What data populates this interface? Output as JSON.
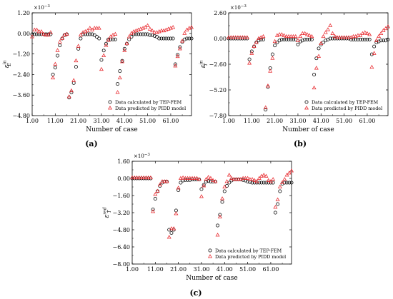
{
  "figure": {
    "captions": [
      "(a)",
      "(b)",
      "(c)"
    ]
  },
  "chart_data": [
    {
      "id": "a",
      "type": "scatter",
      "ylabel": {
        "sym": "ε",
        "sup": "in",
        "sub": "E"
      },
      "xlabel": "Number of case",
      "exponent": "×10",
      "exponent_power": "−3",
      "xlim": [
        1,
        70
      ],
      "ylim": [
        -4.8,
        1.2
      ],
      "xticks": [
        1,
        11,
        21,
        31,
        41,
        51,
        61
      ],
      "xticklabels": [
        "1.00",
        "11.00",
        "21.00",
        "31.00",
        "41.00",
        "51.00",
        "61.00"
      ],
      "yticks": [
        1.2,
        0,
        -1.2,
        -2.4,
        -3.6,
        -4.8
      ],
      "yticklabels": [
        "1.20",
        "0.00",
        "−1.20",
        "−2.40",
        "−3.60",
        "−4.80"
      ],
      "legend": {
        "placement": "bottom-right"
      },
      "series": [
        {
          "name": "Data calculated by TEP-FEM",
          "marker": "circle",
          "color": "#000000",
          "y": [
            -0.05,
            -0.05,
            -0.05,
            -0.05,
            -0.05,
            -0.05,
            -0.05,
            -0.05,
            -0.05,
            -2.4,
            -2.0,
            -1.3,
            -0.7,
            -0.3,
            -0.1,
            -0.05,
            -3.75,
            -3.45,
            -2.9,
            -1.95,
            -0.9,
            -0.3,
            -0.05,
            -0.05,
            -0.05,
            -0.05,
            -0.05,
            -0.1,
            -0.2,
            -0.3,
            -1.55,
            -1.0,
            -0.6,
            -0.35,
            -0.35,
            -0.35,
            -0.35,
            -2.95,
            -2.2,
            -1.6,
            -0.9,
            -0.6,
            -0.35,
            -0.2,
            -0.05,
            -0.05,
            -0.05,
            -0.05,
            -0.05,
            -0.05,
            -0.05,
            -0.1,
            -0.1,
            -0.15,
            -0.2,
            -0.3,
            -0.3,
            -0.3,
            -0.3,
            -0.3,
            -0.3,
            -0.3,
            -1.8,
            -1.25,
            -0.8,
            -0.5,
            -0.35,
            -0.3,
            -0.3,
            -0.3
          ]
        },
        {
          "name": "Data predicted by PIDD model",
          "marker": "triangle",
          "color": "#e8262b",
          "y": [
            -0.2,
            0.2,
            0.2,
            0.1,
            0.1,
            -0.05,
            -0.1,
            -0.1,
            0.05,
            -2.6,
            -1.8,
            -1.0,
            -0.5,
            -0.3,
            -0.1,
            -0.05,
            -3.7,
            -3.35,
            -2.75,
            -1.6,
            -0.75,
            -0.1,
            0.05,
            0.1,
            0.15,
            0.3,
            0.2,
            0.3,
            0.3,
            0.3,
            -2.1,
            -1.3,
            -0.7,
            -0.4,
            -0.2,
            -0.1,
            -0.05,
            -3.45,
            -2.6,
            -1.65,
            -1.0,
            -0.6,
            -0.2,
            0.0,
            0.1,
            0.15,
            0.2,
            0.25,
            0.3,
            0.35,
            0.45,
            0.25,
            0.15,
            0.05,
            0.05,
            0.1,
            0.15,
            0.15,
            0.2,
            0.25,
            0.3,
            0.35,
            -1.9,
            -1.35,
            -0.9,
            -0.45,
            0.0,
            0.2,
            0.3,
            0.35
          ]
        }
      ]
    },
    {
      "id": "b",
      "type": "scatter",
      "ylabel": {
        "sym": "ε",
        "sup": "in",
        "sub": "T"
      },
      "xlabel": "Number of case",
      "exponent": "×10",
      "exponent_power": "−3",
      "xlim": [
        1,
        70
      ],
      "ylim": [
        -7.8,
        2.6
      ],
      "xticks": [
        1,
        11,
        21,
        31,
        41,
        51,
        61
      ],
      "xticklabels": [
        "1.00",
        "11.00",
        "21.00",
        "31.00",
        "41.00",
        "51.00",
        "61.00"
      ],
      "yticks": [
        2.6,
        0,
        -2.6,
        -5.2,
        -7.8
      ],
      "yticklabels": [
        "2.60",
        "0.00",
        "−2.60",
        "−5.20",
        "−7.80"
      ],
      "legend": {
        "placement": "bottom-right"
      },
      "series": [
        {
          "name": "Data calculated by TEP-FEM",
          "marker": "circle",
          "color": "#000000",
          "y": [
            0.0,
            0.0,
            0.0,
            0.0,
            0.0,
            0.0,
            0.0,
            0.0,
            0.0,
            -2.1,
            -1.3,
            -0.8,
            -0.4,
            -0.2,
            -0.1,
            -0.1,
            -7.2,
            -4.9,
            -3.0,
            -1.6,
            -0.7,
            -0.4,
            -0.2,
            -0.1,
            -0.1,
            -0.1,
            -0.1,
            -0.1,
            -0.1,
            -0.1,
            -0.6,
            -0.3,
            -0.2,
            -0.1,
            -0.1,
            -0.1,
            -0.1,
            -3.65,
            -2.0,
            -1.0,
            -0.6,
            -0.4,
            -0.2,
            -0.1,
            0.0,
            0.0,
            0.0,
            0.0,
            0.0,
            0.0,
            0.0,
            0.0,
            0.0,
            -0.1,
            -0.1,
            -0.1,
            -0.1,
            -0.1,
            -0.1,
            -0.1,
            -0.1,
            -0.1,
            -1.6,
            -0.8,
            -0.4,
            -0.3,
            -0.2,
            -0.2,
            -0.2,
            -0.1
          ]
        },
        {
          "name": "Data predicted by PIDD model",
          "marker": "triangle",
          "color": "#e8262b",
          "y": [
            0.1,
            0.1,
            0.1,
            0.1,
            0.1,
            0.1,
            0.1,
            0.1,
            0.1,
            -2.5,
            -1.5,
            -0.8,
            -0.4,
            0.0,
            0.1,
            0.2,
            -7.0,
            -4.8,
            -3.3,
            -2.0,
            -0.3,
            0.3,
            0.4,
            0.4,
            0.3,
            0.2,
            0.2,
            0.2,
            0.2,
            0.2,
            -0.2,
            0.2,
            0.5,
            0.5,
            0.4,
            0.3,
            0.2,
            -5.0,
            -3.0,
            -1.8,
            -0.5,
            0.2,
            0.6,
            0.9,
            1.3,
            0.5,
            0.2,
            0.1,
            0.1,
            0.1,
            0.1,
            0.1,
            0.1,
            0.1,
            0.2,
            0.2,
            0.3,
            0.3,
            0.5,
            0.6,
            0.5,
            0.4,
            -2.9,
            -1.5,
            -0.2,
            0.2,
            0.5,
            0.8,
            1.0,
            1.2
          ]
        }
      ]
    },
    {
      "id": "c",
      "type": "scatter",
      "ylabel": {
        "sym": "ε",
        "sup": "red",
        "sub": "T"
      },
      "xlabel": "Number of case",
      "exponent": "×10",
      "exponent_power": "−3",
      "xlim": [
        1,
        70
      ],
      "ylim": [
        -8.0,
        1.6
      ],
      "xticks": [
        1,
        11,
        21,
        31,
        41,
        51,
        61
      ],
      "xticklabels": [
        "1.00",
        "11.00",
        "21.00",
        "31.00",
        "41.00",
        "51.00",
        "61.00"
      ],
      "yticks": [
        1.6,
        0,
        -1.6,
        -3.2,
        -4.8,
        -6.4,
        -8.0
      ],
      "yticklabels": [
        "1.60",
        "0.00",
        "−1.60",
        "−3.20",
        "−4.80",
        "−6.40",
        "−8.00"
      ],
      "legend": {
        "placement": "bottom-right"
      },
      "series": [
        {
          "name": "Data calculated by TEP-FEM",
          "marker": "circle",
          "color": "#000000",
          "y": [
            0.0,
            0.0,
            0.0,
            0.0,
            0.0,
            0.0,
            0.0,
            0.0,
            0.0,
            -2.9,
            -1.9,
            -1.2,
            -0.7,
            -0.4,
            -0.3,
            -0.3,
            -4.8,
            -5.1,
            -4.8,
            -3.0,
            -1.1,
            -0.4,
            -0.2,
            -0.15,
            -0.15,
            -0.15,
            -0.1,
            -0.1,
            -0.1,
            -0.1,
            -1.0,
            -0.6,
            -0.3,
            -0.25,
            -0.3,
            -0.3,
            -0.3,
            -4.4,
            -3.4,
            -2.2,
            -1.2,
            -0.7,
            -0.4,
            -0.2,
            -0.1,
            -0.1,
            -0.1,
            -0.1,
            -0.15,
            -0.2,
            -0.3,
            -0.35,
            -0.4,
            -0.4,
            -0.4,
            -0.4,
            -0.4,
            -0.4,
            -0.4,
            -0.4,
            -0.4,
            -0.4,
            -3.2,
            -2.4,
            -1.2,
            -0.5,
            -0.4,
            -0.4,
            -0.4,
            -0.4
          ]
        },
        {
          "name": "Data predicted by PIDD model",
          "marker": "triangle",
          "color": "#e8262b",
          "y": [
            0.05,
            0.05,
            0.05,
            0.05,
            0.05,
            0.05,
            0.05,
            0.05,
            0.05,
            -3.1,
            -1.5,
            -1.2,
            -0.6,
            -0.3,
            -0.3,
            -0.3,
            -5.5,
            -4.7,
            -4.7,
            -3.3,
            -0.9,
            0.0,
            0.05,
            0.0,
            0.0,
            0.0,
            0.0,
            0.0,
            0.0,
            -0.1,
            -1.7,
            -0.7,
            -0.1,
            0.1,
            0.0,
            -0.2,
            -0.3,
            -5.3,
            -3.6,
            -1.9,
            -0.8,
            -0.3,
            0.3,
            0.0,
            -0.1,
            -0.1,
            -0.1,
            -0.1,
            0.0,
            0.0,
            0.0,
            -0.1,
            -0.1,
            -0.2,
            -0.3,
            0.0,
            0.2,
            0.3,
            0.2,
            -0.2,
            -0.3,
            -0.1,
            -2.7,
            -2.0,
            -0.8,
            -0.4,
            -0.1,
            0.3,
            0.5,
            0.7
          ]
        }
      ]
    }
  ]
}
